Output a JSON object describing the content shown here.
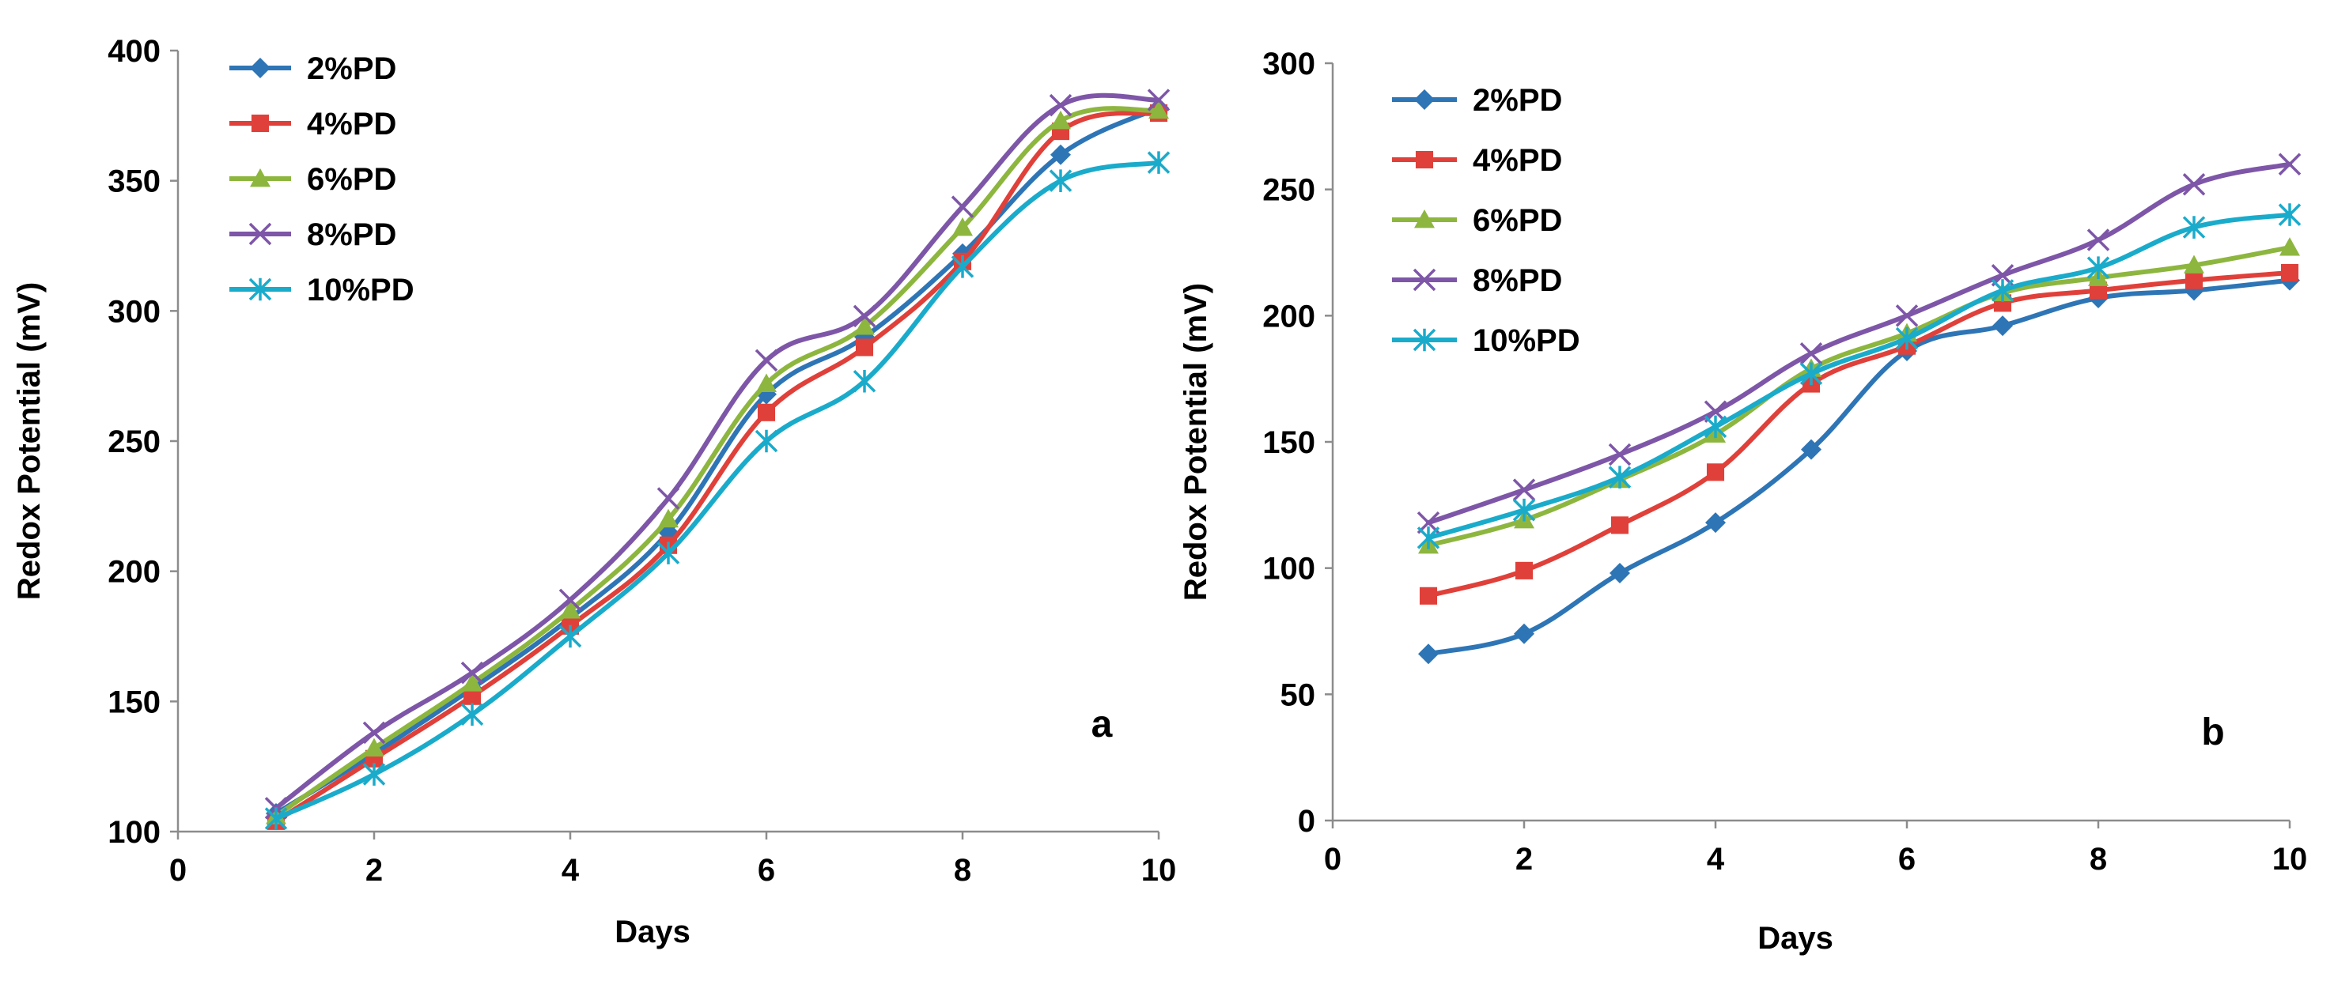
{
  "chart_data": [
    {
      "type": "line",
      "panel_label": "a",
      "xlabel": "Days",
      "ylabel": "Redox Potential (mV)",
      "xlim": [
        0,
        10
      ],
      "ylim": [
        100,
        400
      ],
      "xticks": [
        0,
        2,
        4,
        6,
        8,
        10
      ],
      "yticks": [
        100,
        150,
        200,
        250,
        300,
        350,
        400
      ],
      "x": [
        1,
        2,
        3,
        4,
        5,
        6,
        7,
        8,
        9,
        10
      ],
      "legend_position": "top-left",
      "series": [
        {
          "name": "2%PD",
          "color": "#2E75B6",
          "marker": "diamond",
          "values": [
            107,
            130,
            155,
            182,
            215,
            268,
            290,
            322,
            360,
            378
          ]
        },
        {
          "name": "4%PD",
          "color": "#E0403A",
          "marker": "square",
          "values": [
            104,
            128,
            152,
            179,
            210,
            261,
            286,
            319,
            369,
            376
          ]
        },
        {
          "name": "6%PD",
          "color": "#8DB63F",
          "marker": "triangle",
          "values": [
            106,
            132,
            157,
            185,
            220,
            272,
            294,
            332,
            373,
            377
          ]
        },
        {
          "name": "8%PD",
          "color": "#7E56A8",
          "marker": "x",
          "values": [
            109,
            138,
            161,
            189,
            228,
            281,
            298,
            340,
            379,
            381
          ]
        },
        {
          "name": "10%PD",
          "color": "#1AABCB",
          "marker": "star",
          "values": [
            105,
            122,
            145,
            175,
            207,
            250,
            273,
            317,
            350,
            357
          ]
        }
      ]
    },
    {
      "type": "line",
      "panel_label": "b",
      "xlabel": "Days",
      "ylabel": "Redox Potential (mV)",
      "xlim": [
        0,
        10
      ],
      "ylim": [
        0,
        300
      ],
      "xticks": [
        0,
        2,
        4,
        6,
        8,
        10
      ],
      "yticks": [
        0,
        50,
        100,
        150,
        200,
        250,
        300
      ],
      "x": [
        1,
        2,
        3,
        4,
        5,
        6,
        7,
        8,
        9,
        10
      ],
      "legend_position": "top-left",
      "series": [
        {
          "name": "2%PD",
          "color": "#2E75B6",
          "marker": "diamond",
          "values": [
            66,
            74,
            98,
            118,
            147,
            186,
            196,
            207,
            210,
            214
          ]
        },
        {
          "name": "4%PD",
          "color": "#E0403A",
          "marker": "square",
          "values": [
            89,
            99,
            117,
            138,
            173,
            188,
            205,
            210,
            214,
            217
          ]
        },
        {
          "name": "6%PD",
          "color": "#8DB63F",
          "marker": "triangle",
          "values": [
            109,
            119,
            135,
            153,
            179,
            193,
            209,
            215,
            220,
            227
          ]
        },
        {
          "name": "8%PD",
          "color": "#7E56A8",
          "marker": "x",
          "values": [
            118,
            131,
            145,
            162,
            185,
            200,
            216,
            230,
            252,
            260
          ]
        },
        {
          "name": "10%PD",
          "color": "#1AABCB",
          "marker": "star",
          "values": [
            112,
            123,
            136,
            156,
            177,
            191,
            210,
            219,
            235,
            240
          ]
        }
      ]
    }
  ]
}
